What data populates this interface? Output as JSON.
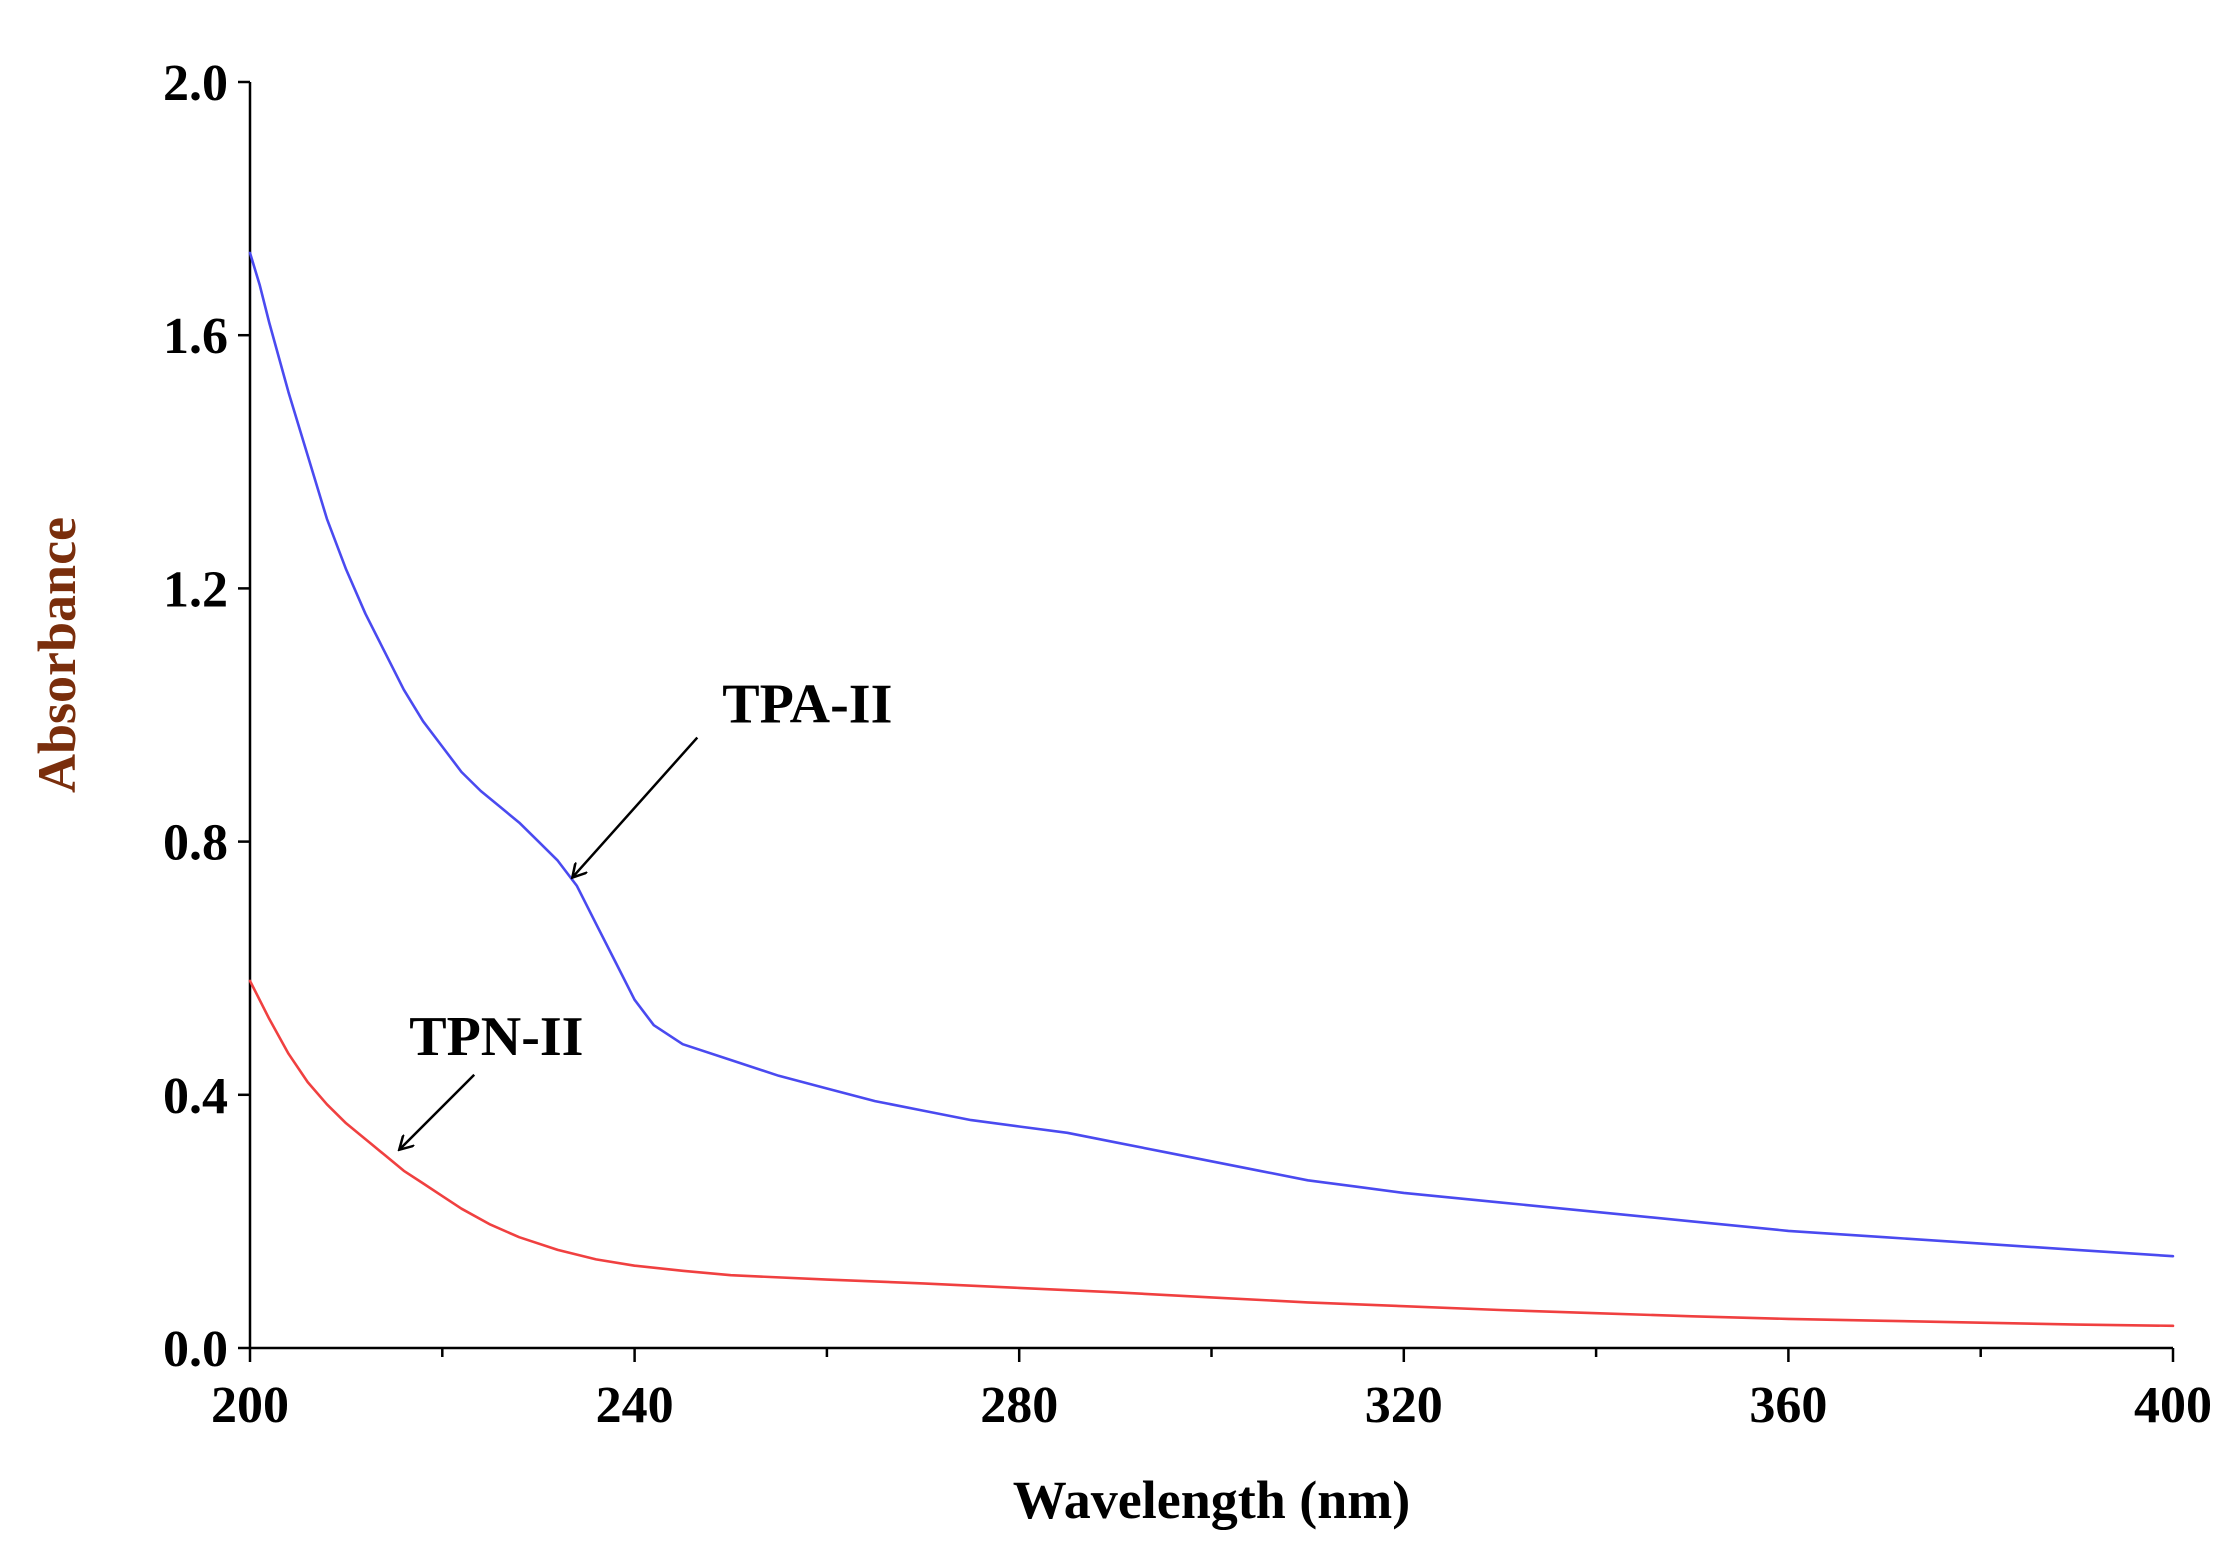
{
  "chart_data": {
    "type": "line",
    "title": "",
    "xlabel": "Wavelength (nm)",
    "ylabel": "Absorbance",
    "xlim": [
      200,
      400
    ],
    "ylim": [
      0.0,
      2.0
    ],
    "xticks": [
      200,
      240,
      280,
      320,
      360,
      400
    ],
    "xtick_labels": [
      "200",
      "240",
      "280",
      "320",
      "360",
      "400"
    ],
    "x_minor_ticks": [
      220,
      260,
      300,
      340,
      380
    ],
    "yticks": [
      0.0,
      0.4,
      0.8,
      1.2,
      1.6,
      2.0
    ],
    "ytick_labels": [
      "0.0",
      "0.4",
      "0.8",
      "1.2",
      "1.6",
      "2.0"
    ],
    "grid": false,
    "axis_label_color": "#7a2e0c",
    "series": [
      {
        "name": "TPA-II",
        "color": "#4a4af0",
        "points": [
          [
            200,
            1.73
          ],
          [
            201,
            1.68
          ],
          [
            202,
            1.62
          ],
          [
            204,
            1.51
          ],
          [
            206,
            1.41
          ],
          [
            208,
            1.31
          ],
          [
            210,
            1.23
          ],
          [
            212,
            1.16
          ],
          [
            214,
            1.1
          ],
          [
            216,
            1.04
          ],
          [
            218,
            0.99
          ],
          [
            220,
            0.95
          ],
          [
            222,
            0.91
          ],
          [
            224,
            0.88
          ],
          [
            226,
            0.855
          ],
          [
            228,
            0.83
          ],
          [
            230,
            0.8
          ],
          [
            232,
            0.77
          ],
          [
            234,
            0.73
          ],
          [
            236,
            0.67
          ],
          [
            238,
            0.61
          ],
          [
            240,
            0.55
          ],
          [
            242,
            0.51
          ],
          [
            245,
            0.48
          ],
          [
            250,
            0.455
          ],
          [
            255,
            0.43
          ],
          [
            260,
            0.41
          ],
          [
            265,
            0.39
          ],
          [
            270,
            0.375
          ],
          [
            275,
            0.36
          ],
          [
            280,
            0.35
          ],
          [
            285,
            0.34
          ],
          [
            290,
            0.325
          ],
          [
            295,
            0.31
          ],
          [
            300,
            0.295
          ],
          [
            305,
            0.28
          ],
          [
            310,
            0.265
          ],
          [
            315,
            0.255
          ],
          [
            320,
            0.245
          ],
          [
            330,
            0.23
          ],
          [
            340,
            0.215
          ],
          [
            350,
            0.2
          ],
          [
            360,
            0.185
          ],
          [
            370,
            0.175
          ],
          [
            380,
            0.165
          ],
          [
            390,
            0.155
          ],
          [
            400,
            0.145
          ]
        ]
      },
      {
        "name": "TPN-II",
        "color": "#f04040",
        "points": [
          [
            200,
            0.58
          ],
          [
            202,
            0.52
          ],
          [
            204,
            0.465
          ],
          [
            206,
            0.42
          ],
          [
            208,
            0.385
          ],
          [
            210,
            0.355
          ],
          [
            212,
            0.33
          ],
          [
            214,
            0.305
          ],
          [
            216,
            0.28
          ],
          [
            218,
            0.26
          ],
          [
            220,
            0.24
          ],
          [
            222,
            0.22
          ],
          [
            225,
            0.195
          ],
          [
            228,
            0.175
          ],
          [
            232,
            0.155
          ],
          [
            236,
            0.14
          ],
          [
            240,
            0.13
          ],
          [
            245,
            0.122
          ],
          [
            250,
            0.115
          ],
          [
            260,
            0.108
          ],
          [
            270,
            0.102
          ],
          [
            280,
            0.095
          ],
          [
            290,
            0.088
          ],
          [
            300,
            0.08
          ],
          [
            310,
            0.072
          ],
          [
            320,
            0.066
          ],
          [
            330,
            0.06
          ],
          [
            340,
            0.055
          ],
          [
            350,
            0.05
          ],
          [
            360,
            0.046
          ],
          [
            370,
            0.043
          ],
          [
            380,
            0.04
          ],
          [
            390,
            0.037
          ],
          [
            400,
            0.035
          ]
        ]
      }
    ],
    "annotations": [
      {
        "text": "TPA-II",
        "series": "TPA-II",
        "x": 233,
        "y": 0.74
      },
      {
        "text": "TPN-II",
        "series": "TPN-II",
        "x": 215,
        "y": 0.31
      }
    ]
  }
}
